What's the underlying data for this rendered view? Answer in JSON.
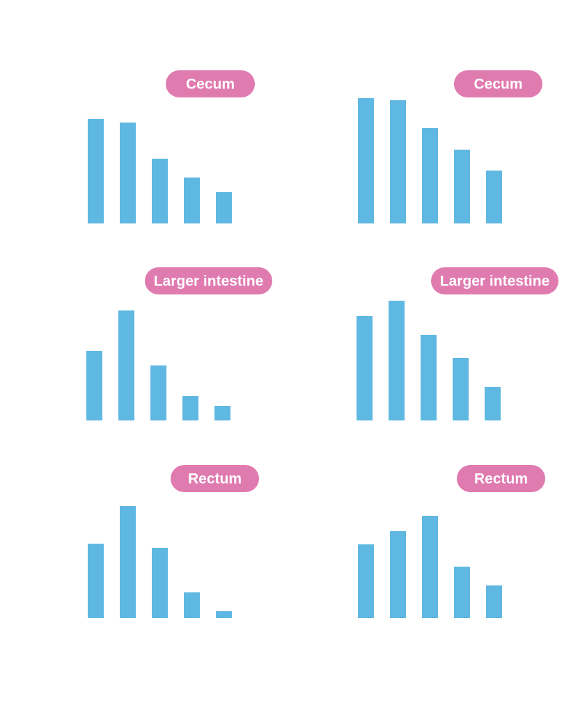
{
  "colors": {
    "bar": "#5fb8e1",
    "pill": "#e07bb0",
    "pill_text": "#ffffff",
    "background": "#ffffff"
  },
  "chart_data": [
    {
      "type": "bar",
      "label": "Cecum",
      "values": [
        150,
        145,
        93,
        66,
        45
      ],
      "ylim": [
        0,
        180
      ],
      "axes_visible": false,
      "grid": false
    },
    {
      "type": "bar",
      "label": "Cecum",
      "values": [
        180,
        177,
        137,
        106,
        76
      ],
      "ylim": [
        0,
        180
      ],
      "axes_visible": false,
      "grid": false
    },
    {
      "type": "bar",
      "label": "Larger intestine",
      "values": [
        100,
        158,
        79,
        35,
        21
      ],
      "ylim": [
        0,
        180
      ],
      "axes_visible": false,
      "grid": false
    },
    {
      "type": "bar",
      "label": "Larger intestine",
      "values": [
        150,
        172,
        123,
        90,
        48
      ],
      "ylim": [
        0,
        180
      ],
      "axes_visible": false,
      "grid": false
    },
    {
      "type": "bar",
      "label": "Rectum",
      "values": [
        107,
        161,
        101,
        37,
        10
      ],
      "ylim": [
        0,
        180
      ],
      "axes_visible": false,
      "grid": false
    },
    {
      "type": "bar",
      "label": "Rectum",
      "values": [
        106,
        125,
        147,
        74,
        47
      ],
      "ylim": [
        0,
        180
      ],
      "axes_visible": false,
      "grid": false
    }
  ]
}
